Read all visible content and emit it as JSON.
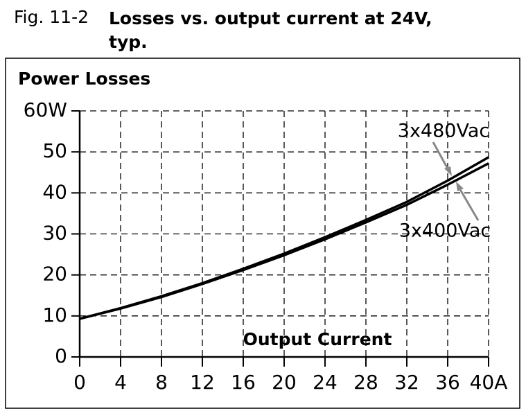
{
  "figure_label": "Fig. 11-2",
  "chart_data": {
    "type": "line",
    "title": "Losses vs. output current at 24V, typ.",
    "y_label": "Power Losses",
    "x_label": "Output Current",
    "x": [
      0,
      4,
      8,
      12,
      16,
      20,
      24,
      28,
      32,
      36,
      40
    ],
    "series": [
      {
        "name": "3x480Vac",
        "color": "#000000",
        "values": [
          9.3,
          11.9,
          14.8,
          18.0,
          21.5,
          25.2,
          29.2,
          33.4,
          37.8,
          43.0,
          48.7
        ]
      },
      {
        "name": "3x400Vac",
        "color": "#000000",
        "values": [
          9.3,
          11.8,
          14.6,
          17.8,
          21.2,
          24.8,
          28.7,
          32.8,
          37.1,
          42.0,
          47.2
        ]
      }
    ],
    "xlim": [
      0,
      40
    ],
    "ylim": [
      0,
      60
    ],
    "xticks": [
      0,
      4,
      8,
      12,
      16,
      20,
      24,
      28,
      32,
      36,
      {
        "value": 40,
        "label": "40A"
      }
    ],
    "yticks": [
      0,
      10,
      20,
      30,
      40,
      50,
      {
        "value": 60,
        "label": "60W"
      }
    ],
    "grid": true
  }
}
